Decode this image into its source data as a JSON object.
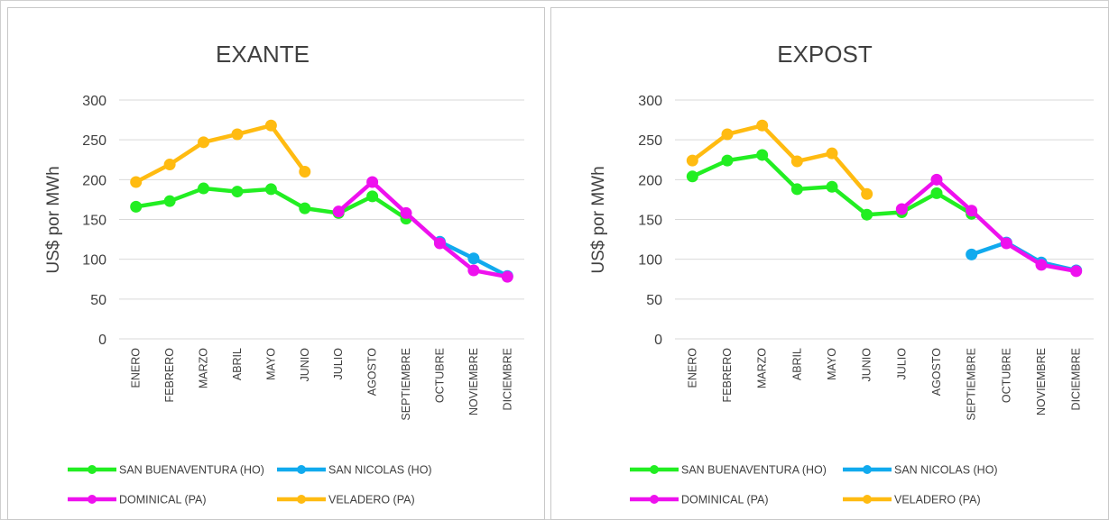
{
  "chart_data": [
    {
      "type": "line",
      "title": "EXANTE",
      "xlabel": "",
      "ylabel": "US$ por MWh",
      "ylim": [
        0,
        300
      ],
      "yticks": [
        0,
        50,
        100,
        150,
        200,
        250,
        300
      ],
      "grid": true,
      "legend_position": "bottom",
      "categories": [
        "ENERO",
        "FEBRERO",
        "MARZO",
        "ABRIL",
        "MAYO",
        "JUNIO",
        "JULIO",
        "AGOSTO",
        "SEPTIEMBRE",
        "OCTUBRE",
        "NOVIEMBRE",
        "DICIEMBRE"
      ],
      "series": [
        {
          "name": "SAN BUENAVENTURA (HO)",
          "color": "#22ee22",
          "values": [
            166,
            173,
            189,
            185,
            188,
            164,
            158,
            179,
            151,
            null,
            null,
            null
          ]
        },
        {
          "name": "SAN NICOLAS (HO)",
          "color": "#11aaee",
          "values": [
            null,
            null,
            null,
            null,
            null,
            null,
            null,
            null,
            null,
            122,
            101,
            79
          ]
        },
        {
          "name": "DOMINICAL (PA)",
          "color": "#ee11ee",
          "values": [
            null,
            null,
            null,
            null,
            null,
            null,
            160,
            197,
            158,
            120,
            86,
            78
          ]
        },
        {
          "name": "VELADERO (PA)",
          "color": "#ffbb11",
          "values": [
            197,
            219,
            247,
            257,
            268,
            210,
            null,
            null,
            null,
            null,
            null,
            null
          ]
        }
      ]
    },
    {
      "type": "line",
      "title": "EXPOST",
      "xlabel": "",
      "ylabel": "US$ por MWh",
      "ylim": [
        0,
        300
      ],
      "yticks": [
        0,
        50,
        100,
        150,
        200,
        250,
        300
      ],
      "grid": true,
      "legend_position": "bottom",
      "categories": [
        "ENERO",
        "FEBRERO",
        "MARZO",
        "ABRIL",
        "MAYO",
        "JUNIO",
        "JULIO",
        "AGOSTO",
        "SEPTIEMBRE",
        "OCTUBRE",
        "NOVIEMBRE",
        "DICIEMBRE"
      ],
      "series": [
        {
          "name": "SAN BUENAVENTURA (HO)",
          "color": "#22ee22",
          "values": [
            204,
            224,
            231,
            188,
            191,
            156,
            159,
            183,
            157,
            null,
            null,
            null
          ]
        },
        {
          "name": "SAN NICOLAS (HO)",
          "color": "#11aaee",
          "values": [
            null,
            null,
            null,
            null,
            null,
            null,
            null,
            null,
            106,
            121,
            96,
            86
          ]
        },
        {
          "name": "DOMINICAL (PA)",
          "color": "#ee11ee",
          "values": [
            null,
            null,
            null,
            null,
            null,
            null,
            163,
            200,
            161,
            120,
            93,
            85
          ]
        },
        {
          "name": "VELADERO (PA)",
          "color": "#ffbb11",
          "values": [
            224,
            257,
            268,
            223,
            233,
            182,
            null,
            null,
            null,
            null,
            null,
            null
          ]
        }
      ]
    }
  ]
}
